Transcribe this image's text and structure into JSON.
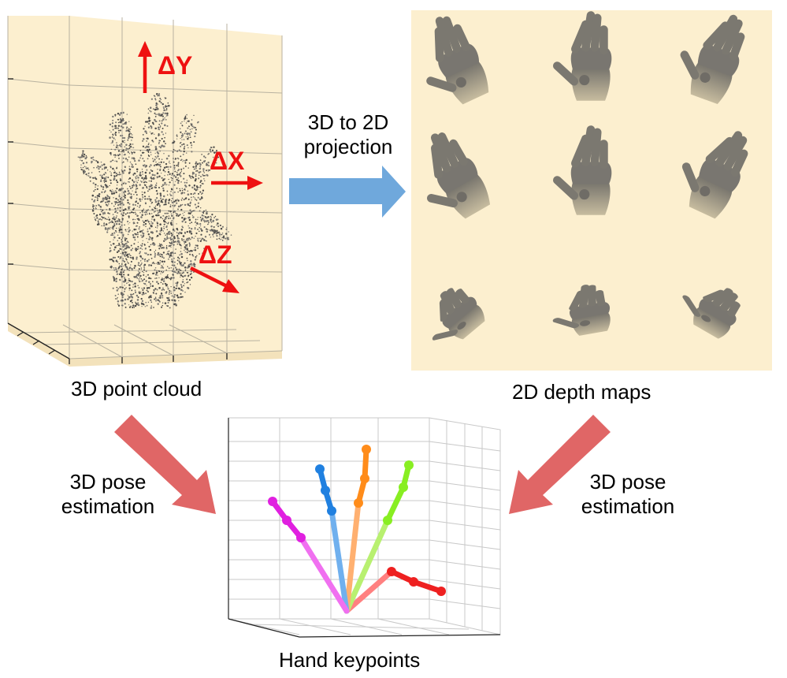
{
  "labels": {
    "point_cloud": "3D point cloud",
    "depth_maps": "2D depth maps",
    "hand_keypoints": "Hand keypoints",
    "projection": [
      "3D to 2D",
      "projection"
    ],
    "pose_left": [
      "3D pose",
      "estimation"
    ],
    "pose_right": [
      "3D pose",
      "estimation"
    ]
  },
  "axes_labels": {
    "dx": "ΔX",
    "dy": "ΔY",
    "dz": "ΔZ"
  },
  "colors": {
    "panel_bg": "#fcefcf",
    "axis_red": "#ee1111",
    "projection_arrow": "#6fa8dc",
    "pose_arrow": "#e06666",
    "hand_gray": "#7d7a72"
  },
  "keypoint_fingers": [
    {
      "name": "thumb",
      "color": "#ee2020"
    },
    {
      "name": "index",
      "color": "#88ee22"
    },
    {
      "name": "middle",
      "color": "#ff8c1a"
    },
    {
      "name": "ring",
      "color": "#2080e0"
    },
    {
      "name": "pinky",
      "color": "#e020e0"
    }
  ]
}
